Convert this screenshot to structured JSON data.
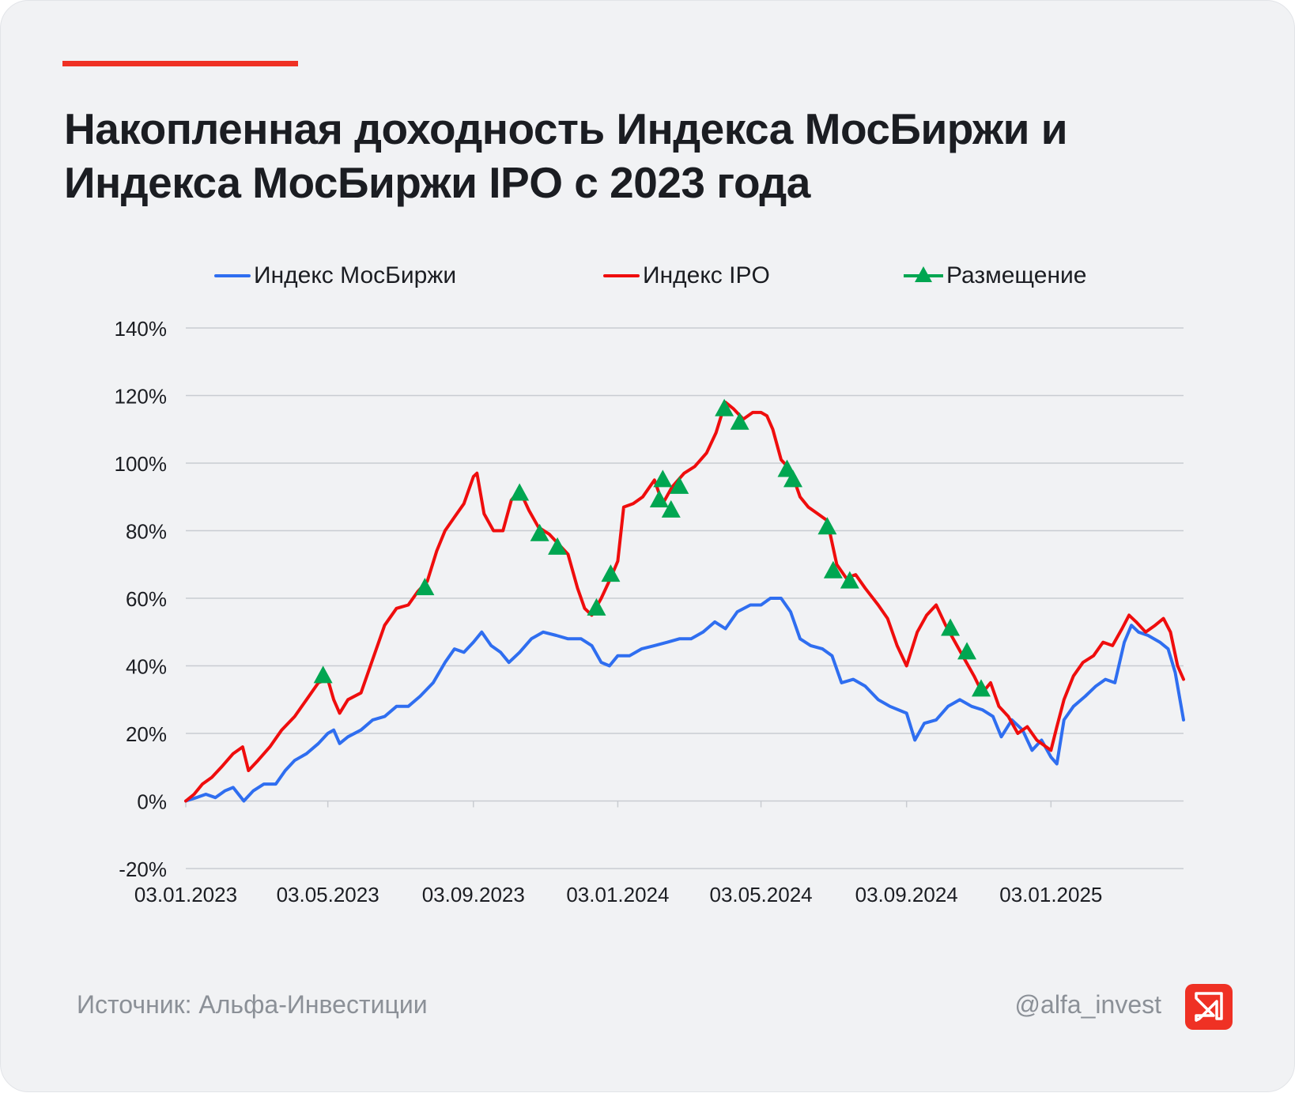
{
  "title": "Накопленная доходность Индекса МосБиржи и Индекса МосБиржи IPO с 2023 года",
  "footer": {
    "source": "Источник: Альфа-Инвестиции",
    "handle": "@alfa_invest"
  },
  "logo": {
    "icon": "alfa-invest-logo-icon",
    "color": "#ef3124"
  },
  "colors": {
    "moex": "#2f6ef0",
    "ipo": "#ef0d0d",
    "listing": "#00a651",
    "accent": "#ef3124",
    "grid": "#c9ccd1"
  },
  "chart_data": {
    "type": "line",
    "title": "Накопленная доходность Индекса МосБиржи и Индекса МосБиржи IPO с 2023 года",
    "x_tick_labels": [
      "03.01.2023",
      "03.05.2023",
      "03.09.2023",
      "03.01.2024",
      "03.05.2024",
      "03.09.2024",
      "03.01.2025"
    ],
    "x_ticks": [
      "2023-01-03",
      "2023-05-03",
      "2023-09-03",
      "2024-01-03",
      "2024-05-03",
      "2024-09-03",
      "2025-01-03"
    ],
    "x_range": [
      "2023-01-03",
      "2025-04-25"
    ],
    "y_tick_labels": [
      "-20%",
      "0%",
      "20%",
      "40%",
      "60%",
      "80%",
      "100%",
      "120%",
      "140%"
    ],
    "ylim": [
      -20,
      140
    ],
    "y_unit": "%",
    "grid": true,
    "legend_position": "top",
    "series": [
      {
        "name": "Индекс МосБиржи",
        "color": "#2f6ef0",
        "points": [
          [
            "2023-01-03",
            0
          ],
          [
            "2023-01-12",
            1
          ],
          [
            "2023-01-20",
            2
          ],
          [
            "2023-01-28",
            1
          ],
          [
            "2023-02-05",
            3
          ],
          [
            "2023-02-12",
            4
          ],
          [
            "2023-02-21",
            0
          ],
          [
            "2023-03-01",
            3
          ],
          [
            "2023-03-10",
            5
          ],
          [
            "2023-03-20",
            5
          ],
          [
            "2023-03-28",
            9
          ],
          [
            "2023-04-05",
            12
          ],
          [
            "2023-04-15",
            14
          ],
          [
            "2023-04-25",
            17
          ],
          [
            "2023-05-03",
            20
          ],
          [
            "2023-05-08",
            21
          ],
          [
            "2023-05-13",
            17
          ],
          [
            "2023-05-20",
            19
          ],
          [
            "2023-05-31",
            21
          ],
          [
            "2023-06-10",
            24
          ],
          [
            "2023-06-20",
            25
          ],
          [
            "2023-06-30",
            28
          ],
          [
            "2023-07-10",
            28
          ],
          [
            "2023-07-20",
            31
          ],
          [
            "2023-07-31",
            35
          ],
          [
            "2023-08-10",
            41
          ],
          [
            "2023-08-18",
            45
          ],
          [
            "2023-08-26",
            44
          ],
          [
            "2023-09-03",
            47
          ],
          [
            "2023-09-10",
            50
          ],
          [
            "2023-09-18",
            46
          ],
          [
            "2023-09-26",
            44
          ],
          [
            "2023-10-03",
            41
          ],
          [
            "2023-10-12",
            44
          ],
          [
            "2023-10-22",
            48
          ],
          [
            "2023-11-01",
            50
          ],
          [
            "2023-11-12",
            49
          ],
          [
            "2023-11-22",
            48
          ],
          [
            "2023-12-03",
            48
          ],
          [
            "2023-12-12",
            46
          ],
          [
            "2023-12-20",
            41
          ],
          [
            "2023-12-27",
            40
          ],
          [
            "2024-01-03",
            43
          ],
          [
            "2024-01-13",
            43
          ],
          [
            "2024-01-23",
            45
          ],
          [
            "2024-02-03",
            46
          ],
          [
            "2024-02-14",
            47
          ],
          [
            "2024-02-24",
            48
          ],
          [
            "2024-03-05",
            48
          ],
          [
            "2024-03-15",
            50
          ],
          [
            "2024-03-25",
            53
          ],
          [
            "2024-04-03",
            51
          ],
          [
            "2024-04-13",
            56
          ],
          [
            "2024-04-24",
            58
          ],
          [
            "2024-05-03",
            58
          ],
          [
            "2024-05-11",
            60
          ],
          [
            "2024-05-20",
            60
          ],
          [
            "2024-05-28",
            56
          ],
          [
            "2024-06-05",
            48
          ],
          [
            "2024-06-14",
            46
          ],
          [
            "2024-06-24",
            45
          ],
          [
            "2024-07-02",
            43
          ],
          [
            "2024-07-10",
            35
          ],
          [
            "2024-07-20",
            36
          ],
          [
            "2024-07-30",
            34
          ],
          [
            "2024-08-10",
            30
          ],
          [
            "2024-08-20",
            28
          ],
          [
            "2024-09-03",
            26
          ],
          [
            "2024-09-10",
            18
          ],
          [
            "2024-09-18",
            23
          ],
          [
            "2024-09-28",
            24
          ],
          [
            "2024-10-08",
            28
          ],
          [
            "2024-10-18",
            30
          ],
          [
            "2024-10-28",
            28
          ],
          [
            "2024-11-06",
            27
          ],
          [
            "2024-11-15",
            25
          ],
          [
            "2024-11-22",
            19
          ],
          [
            "2024-12-01",
            24
          ],
          [
            "2024-12-10",
            21
          ],
          [
            "2024-12-18",
            15
          ],
          [
            "2024-12-26",
            18
          ],
          [
            "2025-01-03",
            13
          ],
          [
            "2025-01-08",
            11
          ],
          [
            "2025-01-14",
            24
          ],
          [
            "2025-01-22",
            28
          ],
          [
            "2025-02-01",
            31
          ],
          [
            "2025-02-10",
            34
          ],
          [
            "2025-02-18",
            36
          ],
          [
            "2025-02-26",
            35
          ],
          [
            "2025-03-06",
            47
          ],
          [
            "2025-03-12",
            52
          ],
          [
            "2025-03-18",
            50
          ],
          [
            "2025-03-26",
            49
          ],
          [
            "2025-04-05",
            47
          ],
          [
            "2025-04-12",
            45
          ],
          [
            "2025-04-18",
            38
          ],
          [
            "2025-04-25",
            24
          ]
        ]
      },
      {
        "name": "Индекс IPO",
        "color": "#ef0d0d",
        "points": [
          [
            "2023-01-03",
            0
          ],
          [
            "2023-01-10",
            2
          ],
          [
            "2023-01-17",
            5
          ],
          [
            "2023-01-25",
            7
          ],
          [
            "2023-02-02",
            10
          ],
          [
            "2023-02-12",
            14
          ],
          [
            "2023-02-20",
            16
          ],
          [
            "2023-02-25",
            9
          ],
          [
            "2023-03-05",
            12
          ],
          [
            "2023-03-15",
            16
          ],
          [
            "2023-03-25",
            21
          ],
          [
            "2023-04-05",
            25
          ],
          [
            "2023-04-15",
            30
          ],
          [
            "2023-04-25",
            35
          ],
          [
            "2023-05-03",
            36
          ],
          [
            "2023-05-08",
            30
          ],
          [
            "2023-05-13",
            26
          ],
          [
            "2023-05-20",
            30
          ],
          [
            "2023-05-31",
            32
          ],
          [
            "2023-06-10",
            42
          ],
          [
            "2023-06-20",
            52
          ],
          [
            "2023-06-30",
            57
          ],
          [
            "2023-07-10",
            58
          ],
          [
            "2023-07-18",
            62
          ],
          [
            "2023-07-26",
            65
          ],
          [
            "2023-08-03",
            74
          ],
          [
            "2023-08-10",
            80
          ],
          [
            "2023-08-18",
            84
          ],
          [
            "2023-08-26",
            88
          ],
          [
            "2023-09-03",
            96
          ],
          [
            "2023-09-06",
            97
          ],
          [
            "2023-09-12",
            85
          ],
          [
            "2023-09-20",
            80
          ],
          [
            "2023-09-28",
            80
          ],
          [
            "2023-10-05",
            89
          ],
          [
            "2023-10-12",
            92
          ],
          [
            "2023-10-20",
            86
          ],
          [
            "2023-10-28",
            81
          ],
          [
            "2023-11-06",
            79
          ],
          [
            "2023-11-14",
            76
          ],
          [
            "2023-11-22",
            73
          ],
          [
            "2023-11-30",
            63
          ],
          [
            "2023-12-06",
            57
          ],
          [
            "2023-12-12",
            55
          ],
          [
            "2023-12-20",
            60
          ],
          [
            "2023-12-28",
            66
          ],
          [
            "2024-01-03",
            71
          ],
          [
            "2024-01-08",
            87
          ],
          [
            "2024-01-16",
            88
          ],
          [
            "2024-01-24",
            90
          ],
          [
            "2024-02-03",
            95
          ],
          [
            "2024-02-10",
            88
          ],
          [
            "2024-02-18",
            93
          ],
          [
            "2024-02-28",
            97
          ],
          [
            "2024-03-08",
            99
          ],
          [
            "2024-03-18",
            103
          ],
          [
            "2024-03-26",
            109
          ],
          [
            "2024-04-03",
            118
          ],
          [
            "2024-04-10",
            116
          ],
          [
            "2024-04-18",
            113
          ],
          [
            "2024-04-26",
            115
          ],
          [
            "2024-05-03",
            115
          ],
          [
            "2024-05-08",
            114
          ],
          [
            "2024-05-13",
            110
          ],
          [
            "2024-05-20",
            101
          ],
          [
            "2024-05-28",
            98
          ],
          [
            "2024-06-05",
            90
          ],
          [
            "2024-06-12",
            87
          ],
          [
            "2024-06-20",
            85
          ],
          [
            "2024-06-28",
            83
          ],
          [
            "2024-07-06",
            70
          ],
          [
            "2024-07-14",
            66
          ],
          [
            "2024-07-22",
            67
          ],
          [
            "2024-07-30",
            63
          ],
          [
            "2024-08-10",
            58
          ],
          [
            "2024-08-18",
            54
          ],
          [
            "2024-08-26",
            46
          ],
          [
            "2024-09-03",
            40
          ],
          [
            "2024-09-12",
            50
          ],
          [
            "2024-09-20",
            55
          ],
          [
            "2024-09-28",
            58
          ],
          [
            "2024-10-06",
            52
          ],
          [
            "2024-10-14",
            47
          ],
          [
            "2024-10-22",
            42
          ],
          [
            "2024-10-30",
            37
          ],
          [
            "2024-11-06",
            32
          ],
          [
            "2024-11-13",
            35
          ],
          [
            "2024-11-20",
            28
          ],
          [
            "2024-11-28",
            25
          ],
          [
            "2024-12-06",
            20
          ],
          [
            "2024-12-14",
            22
          ],
          [
            "2024-12-22",
            18
          ],
          [
            "2025-01-03",
            15
          ],
          [
            "2025-01-08",
            22
          ],
          [
            "2025-01-14",
            30
          ],
          [
            "2025-01-22",
            37
          ],
          [
            "2025-01-30",
            41
          ],
          [
            "2025-02-08",
            43
          ],
          [
            "2025-02-16",
            47
          ],
          [
            "2025-02-24",
            46
          ],
          [
            "2025-03-04",
            51
          ],
          [
            "2025-03-10",
            55
          ],
          [
            "2025-03-16",
            53
          ],
          [
            "2025-03-24",
            50
          ],
          [
            "2025-04-01",
            52
          ],
          [
            "2025-04-08",
            54
          ],
          [
            "2025-04-14",
            50
          ],
          [
            "2025-04-20",
            40
          ],
          [
            "2025-04-25",
            36
          ]
        ]
      },
      {
        "name": "Размещение",
        "color": "#00a651",
        "marker": "triangle",
        "points": [
          [
            "2023-04-29",
            37
          ],
          [
            "2023-07-24",
            63
          ],
          [
            "2023-10-12",
            91
          ],
          [
            "2023-10-29",
            79
          ],
          [
            "2023-11-13",
            75
          ],
          [
            "2023-12-16",
            57
          ],
          [
            "2023-12-28",
            67
          ],
          [
            "2024-02-07",
            89
          ],
          [
            "2024-02-10",
            95
          ],
          [
            "2024-02-17",
            86
          ],
          [
            "2024-02-24",
            93
          ],
          [
            "2024-04-02",
            116
          ],
          [
            "2024-04-15",
            112
          ],
          [
            "2024-05-25",
            98
          ],
          [
            "2024-05-30",
            95
          ],
          [
            "2024-06-28",
            81
          ],
          [
            "2024-07-03",
            68
          ],
          [
            "2024-07-17",
            65
          ],
          [
            "2024-10-10",
            51
          ],
          [
            "2024-10-24",
            44
          ],
          [
            "2024-11-05",
            33
          ]
        ]
      }
    ]
  }
}
